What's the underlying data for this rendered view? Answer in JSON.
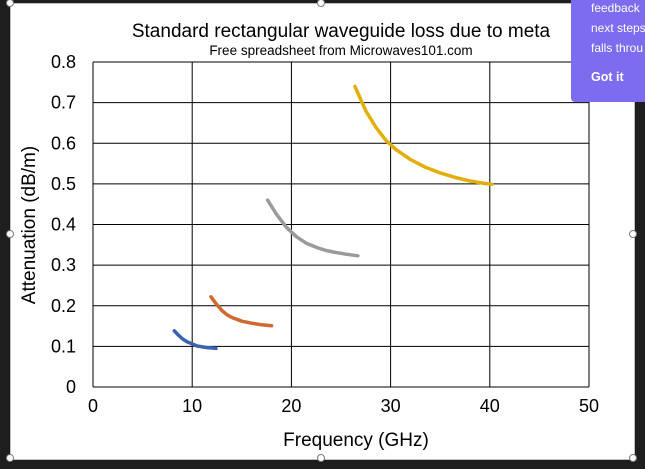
{
  "chart_data": {
    "type": "line",
    "title": "Standard rectangular waveguide loss due to meta",
    "subtitle": "Free spreadsheet from Microwaves101.com",
    "xlabel": "Frequency (GHz)",
    "ylabel": "Attenuation (dB/m)",
    "xlim": [
      0,
      50
    ],
    "ylim": [
      0,
      0.8
    ],
    "xticks": [
      "0",
      "10",
      "20",
      "30",
      "40",
      "50"
    ],
    "yticks": [
      "0",
      "0.1",
      "0.2",
      "0.3",
      "0.4",
      "0.5",
      "0.6",
      "0.7",
      "0.8"
    ],
    "grid": true,
    "series": [
      {
        "color": "#3a64b0",
        "x": [
          8.2,
          8.6,
          9.0,
          9.5,
          10.0,
          10.5,
          11.0,
          11.5,
          12.0,
          12.4
        ],
        "y": [
          0.138,
          0.128,
          0.119,
          0.111,
          0.106,
          0.101,
          0.099,
          0.097,
          0.096,
          0.095
        ]
      },
      {
        "color": "#d0692f",
        "x": [
          11.9,
          12.4,
          13.0,
          13.5,
          14.0,
          15.0,
          16.0,
          17.0,
          18.0
        ],
        "y": [
          0.222,
          0.205,
          0.188,
          0.178,
          0.171,
          0.162,
          0.157,
          0.153,
          0.151
        ]
      },
      {
        "color": "#9a9a9a",
        "x": [
          17.6,
          18.5,
          19.5,
          20.5,
          21.5,
          22.5,
          23.5,
          24.5,
          25.5,
          26.7
        ],
        "y": [
          0.46,
          0.425,
          0.393,
          0.37,
          0.354,
          0.344,
          0.336,
          0.331,
          0.327,
          0.323
        ]
      },
      {
        "color": "#e3ae08",
        "x": [
          26.4,
          27.5,
          28.5,
          29.5,
          30.5,
          32.0,
          33.5,
          35.0,
          36.5,
          38.0,
          39.5,
          40.2
        ],
        "y": [
          0.74,
          0.68,
          0.64,
          0.608,
          0.585,
          0.56,
          0.541,
          0.527,
          0.516,
          0.507,
          0.501,
          0.499
        ]
      }
    ]
  },
  "popup": {
    "lines": [
      "feedback",
      "next steps",
      "falls throu"
    ],
    "button_label": "Got it"
  },
  "colors": {
    "popup_bg": "#7b6cf0",
    "gridline": "#000000"
  }
}
